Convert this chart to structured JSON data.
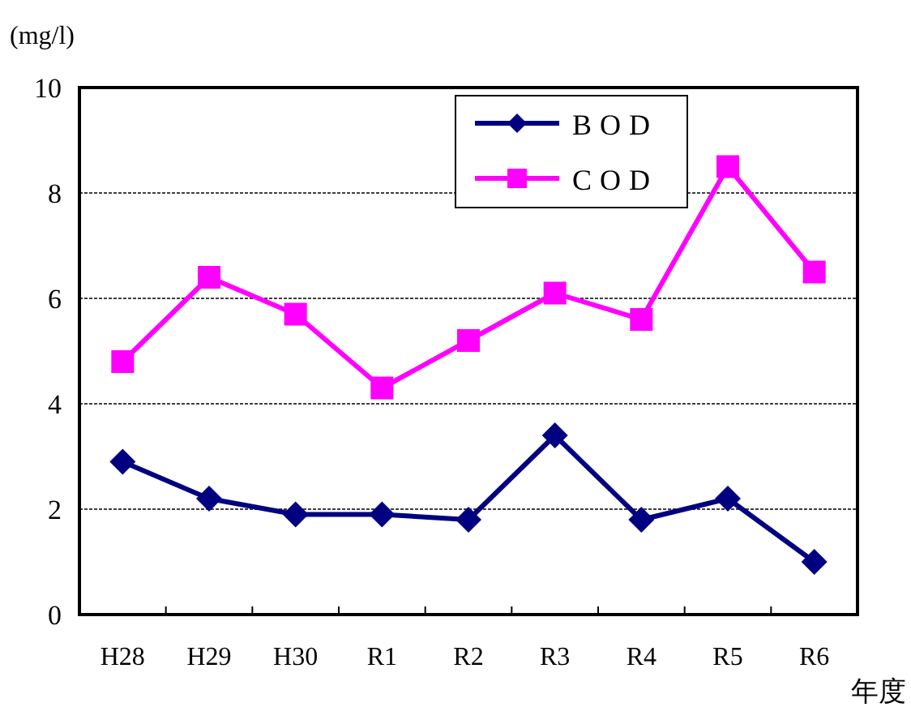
{
  "chart_data": {
    "type": "line",
    "ylabel": "(mg/l)",
    "xlabel": "年度",
    "categories": [
      "H28",
      "H29",
      "H30",
      "R1",
      "R2",
      "R3",
      "R4",
      "R5",
      "R6"
    ],
    "series": [
      {
        "name": "BOD",
        "color": "#000080",
        "marker": "diamond",
        "values": [
          2.9,
          2.2,
          1.9,
          1.9,
          1.8,
          3.4,
          1.8,
          2.2,
          1.0
        ]
      },
      {
        "name": "COD",
        "color": "#ff00ff",
        "marker": "square",
        "values": [
          4.8,
          6.4,
          5.7,
          4.3,
          5.2,
          6.1,
          5.6,
          8.5,
          6.5
        ]
      }
    ],
    "ylim": [
      0,
      10
    ],
    "yticks": [
      0,
      2,
      4,
      6,
      8,
      10
    ],
    "grid": "y",
    "legend": "top right",
    "line_style": "solid"
  }
}
